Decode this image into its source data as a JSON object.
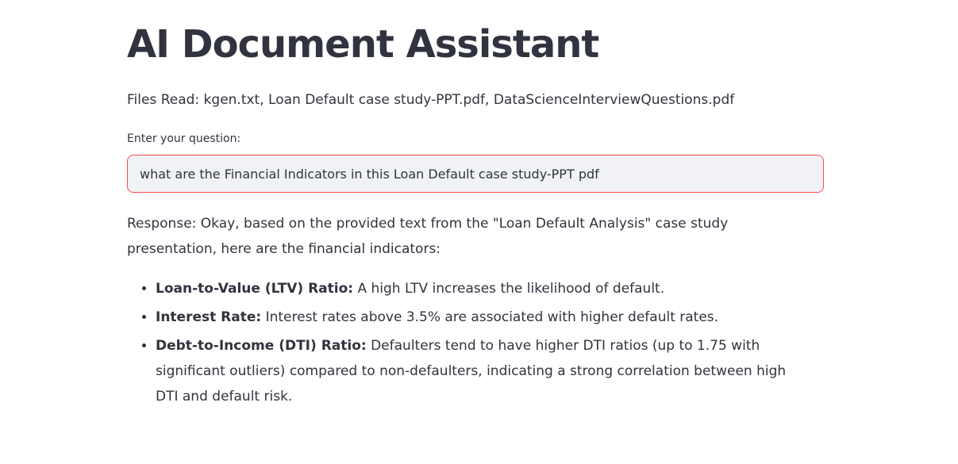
{
  "app": {
    "title": "AI Document Assistant"
  },
  "files": {
    "text": "Files Read: kgen.txt, Loan Default case study-PPT.pdf, DataScienceInterviewQuestions.pdf"
  },
  "question": {
    "label": "Enter your question:",
    "value": "what are the Financial Indicators in this Loan Default case study-PPT pdf"
  },
  "response": {
    "intro": "Response: Okay, based on the provided text from the \"Loan Default Analysis\" case study presentation, here are the financial indicators:",
    "items": [
      {
        "term": "Loan-to-Value (LTV) Ratio:",
        "text": " A high LTV increases the likelihood of default."
      },
      {
        "term": "Interest Rate:",
        "text": " Interest rates above 3.5% are associated with higher default rates."
      },
      {
        "term": "Debt-to-Income (DTI) Ratio:",
        "text": " Defaulters tend to have higher DTI ratios (up to 1.75 with significant outliers) compared to non-defaulters, indicating a strong correlation between high DTI and default risk."
      }
    ]
  },
  "colors": {
    "text": "#31333f",
    "input_bg": "#f0f2f6",
    "input_border_focus": "#ff4b4b"
  }
}
